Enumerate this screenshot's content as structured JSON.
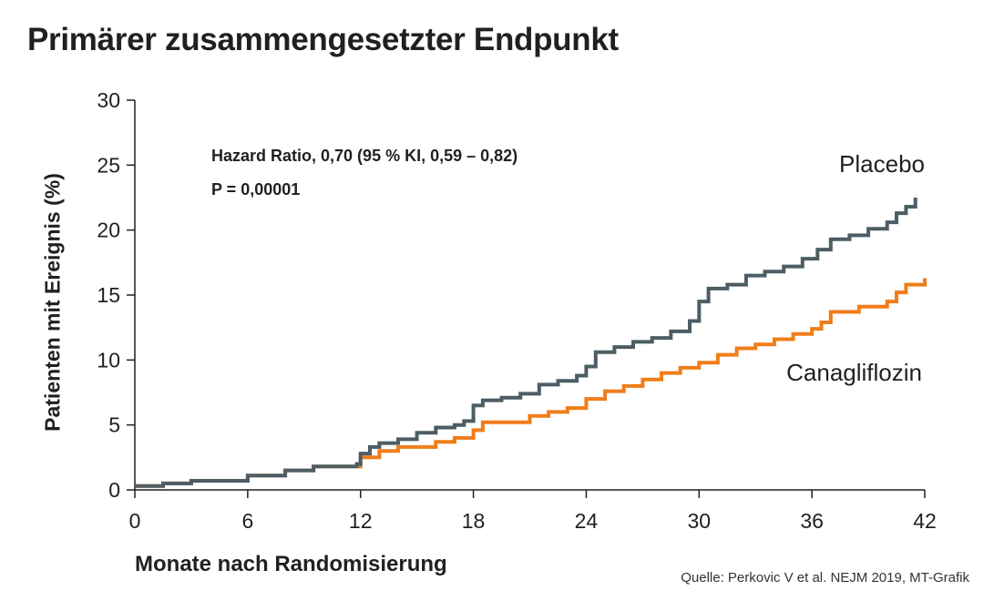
{
  "title": "Primärer zusammengesetzter Endpunkt",
  "source": "Quelle: Perkovic V et al. NEJM 2019, MT-Grafik",
  "chart_data": {
    "type": "line",
    "step": true,
    "title": "Primärer zusammengesetzter Endpunkt",
    "xlabel": "Monate nach Randomisierung",
    "ylabel": "Patienten mit Ereignis (%)",
    "xlim": [
      0,
      42
    ],
    "ylim": [
      0,
      30
    ],
    "xticks": [
      0,
      6,
      12,
      18,
      24,
      30,
      36,
      42
    ],
    "yticks": [
      0,
      5,
      10,
      15,
      20,
      25,
      30
    ],
    "grid": false,
    "annotations": [
      "Hazard Ratio, 0,70 (95 % KI, 0,59 – 0,82)",
      "P = 0,00001"
    ],
    "series": [
      {
        "name": "Placebo",
        "color": "#4d5d65",
        "points": [
          [
            0,
            0.3
          ],
          [
            1.5,
            0.5
          ],
          [
            3,
            0.7
          ],
          [
            6,
            1.1
          ],
          [
            8,
            1.5
          ],
          [
            9.5,
            1.8
          ],
          [
            11.8,
            2.0
          ],
          [
            12,
            2.8
          ],
          [
            12.5,
            3.3
          ],
          [
            13,
            3.6
          ],
          [
            14,
            3.9
          ],
          [
            15,
            4.4
          ],
          [
            16,
            4.8
          ],
          [
            17,
            5.0
          ],
          [
            17.5,
            5.3
          ],
          [
            18,
            6.5
          ],
          [
            18.5,
            6.9
          ],
          [
            19.5,
            7.1
          ],
          [
            20.5,
            7.4
          ],
          [
            21.5,
            8.1
          ],
          [
            22.5,
            8.4
          ],
          [
            23.5,
            8.8
          ],
          [
            24,
            9.5
          ],
          [
            24.5,
            10.6
          ],
          [
            25.5,
            11.0
          ],
          [
            26.5,
            11.4
          ],
          [
            27.5,
            11.7
          ],
          [
            28.5,
            12.2
          ],
          [
            29.5,
            13.0
          ],
          [
            30,
            14.5
          ],
          [
            30.5,
            15.5
          ],
          [
            31.5,
            15.8
          ],
          [
            32.5,
            16.5
          ],
          [
            33.5,
            16.8
          ],
          [
            34.5,
            17.2
          ],
          [
            35.5,
            17.8
          ],
          [
            36.3,
            18.5
          ],
          [
            37,
            19.3
          ],
          [
            38,
            19.6
          ],
          [
            39,
            20.1
          ],
          [
            40,
            20.6
          ],
          [
            40.5,
            21.3
          ],
          [
            41,
            21.8
          ],
          [
            41.5,
            22.5
          ]
        ]
      },
      {
        "name": "Canagliflozin",
        "color": "#f07d19",
        "points": [
          [
            0,
            0.3
          ],
          [
            1.5,
            0.5
          ],
          [
            3,
            0.7
          ],
          [
            6,
            1.1
          ],
          [
            8,
            1.5
          ],
          [
            9.5,
            1.8
          ],
          [
            12,
            2.5
          ],
          [
            13,
            3.0
          ],
          [
            14,
            3.3
          ],
          [
            16,
            3.7
          ],
          [
            17,
            4.0
          ],
          [
            18,
            4.6
          ],
          [
            18.5,
            5.2
          ],
          [
            21,
            5.7
          ],
          [
            22,
            6.0
          ],
          [
            23,
            6.3
          ],
          [
            24,
            7.0
          ],
          [
            25,
            7.6
          ],
          [
            26,
            8.0
          ],
          [
            27,
            8.5
          ],
          [
            28,
            9.0
          ],
          [
            29,
            9.4
          ],
          [
            30,
            9.8
          ],
          [
            31,
            10.4
          ],
          [
            32,
            10.9
          ],
          [
            33,
            11.2
          ],
          [
            34,
            11.6
          ],
          [
            35,
            12.0
          ],
          [
            36,
            12.4
          ],
          [
            36.5,
            12.9
          ],
          [
            37,
            13.7
          ],
          [
            38.5,
            14.1
          ],
          [
            40,
            14.5
          ],
          [
            40.5,
            15.2
          ],
          [
            41,
            15.8
          ],
          [
            42,
            16.3
          ]
        ]
      }
    ]
  }
}
